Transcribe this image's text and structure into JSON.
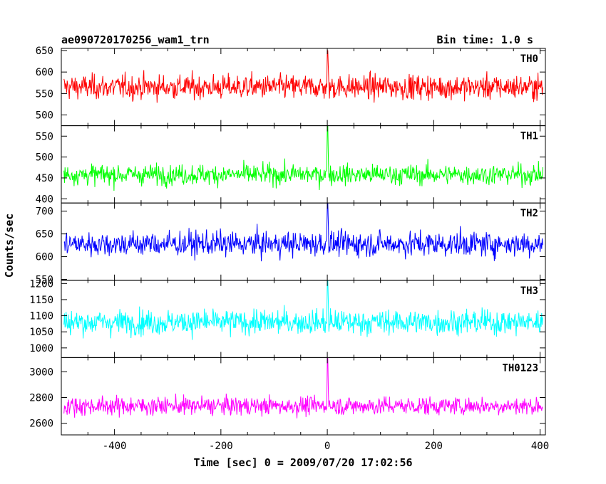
{
  "chart_data": {
    "type": "line",
    "title": "ae090720170256_wam1_trn",
    "bin_time_label": "Bin time: 1.0 s",
    "xlabel": "Time [sec] 0 = 2009/07/20 17:02:56",
    "ylabel": "Counts/sec",
    "xlim": [
      -500,
      410
    ],
    "x_ticks": [
      -400,
      -200,
      0,
      200,
      400
    ],
    "panels": [
      {
        "name": "TH0",
        "color": "#ff0000",
        "ylim": [
          475,
          655
        ],
        "y_ticks": [
          500,
          550,
          600,
          650
        ],
        "mean": 565,
        "std": 28,
        "peak": 650
      },
      {
        "name": "TH1",
        "color": "#00ff00",
        "ylim": [
          390,
          575
        ],
        "y_ticks": [
          400,
          450,
          500,
          550
        ],
        "mean": 458,
        "std": 24,
        "peak": 575
      },
      {
        "name": "TH2",
        "color": "#0000ff",
        "ylim": [
          548,
          718
        ],
        "y_ticks": [
          550,
          600,
          650,
          700
        ],
        "mean": 628,
        "std": 27,
        "peak": 718
      },
      {
        "name": "TH3",
        "color": "#00ffff",
        "ylim": [
          970,
          1210
        ],
        "y_ticks": [
          1000,
          1050,
          1100,
          1150,
          1200
        ],
        "mean": 1080,
        "std": 38,
        "peak": 1210
      },
      {
        "name": "TH0123",
        "color": "#ff00ff",
        "ylim": [
          2510,
          3110
        ],
        "y_ticks": [
          2600,
          2800,
          3000
        ],
        "mean": 2735,
        "std": 70,
        "peak": 3110
      }
    ]
  }
}
